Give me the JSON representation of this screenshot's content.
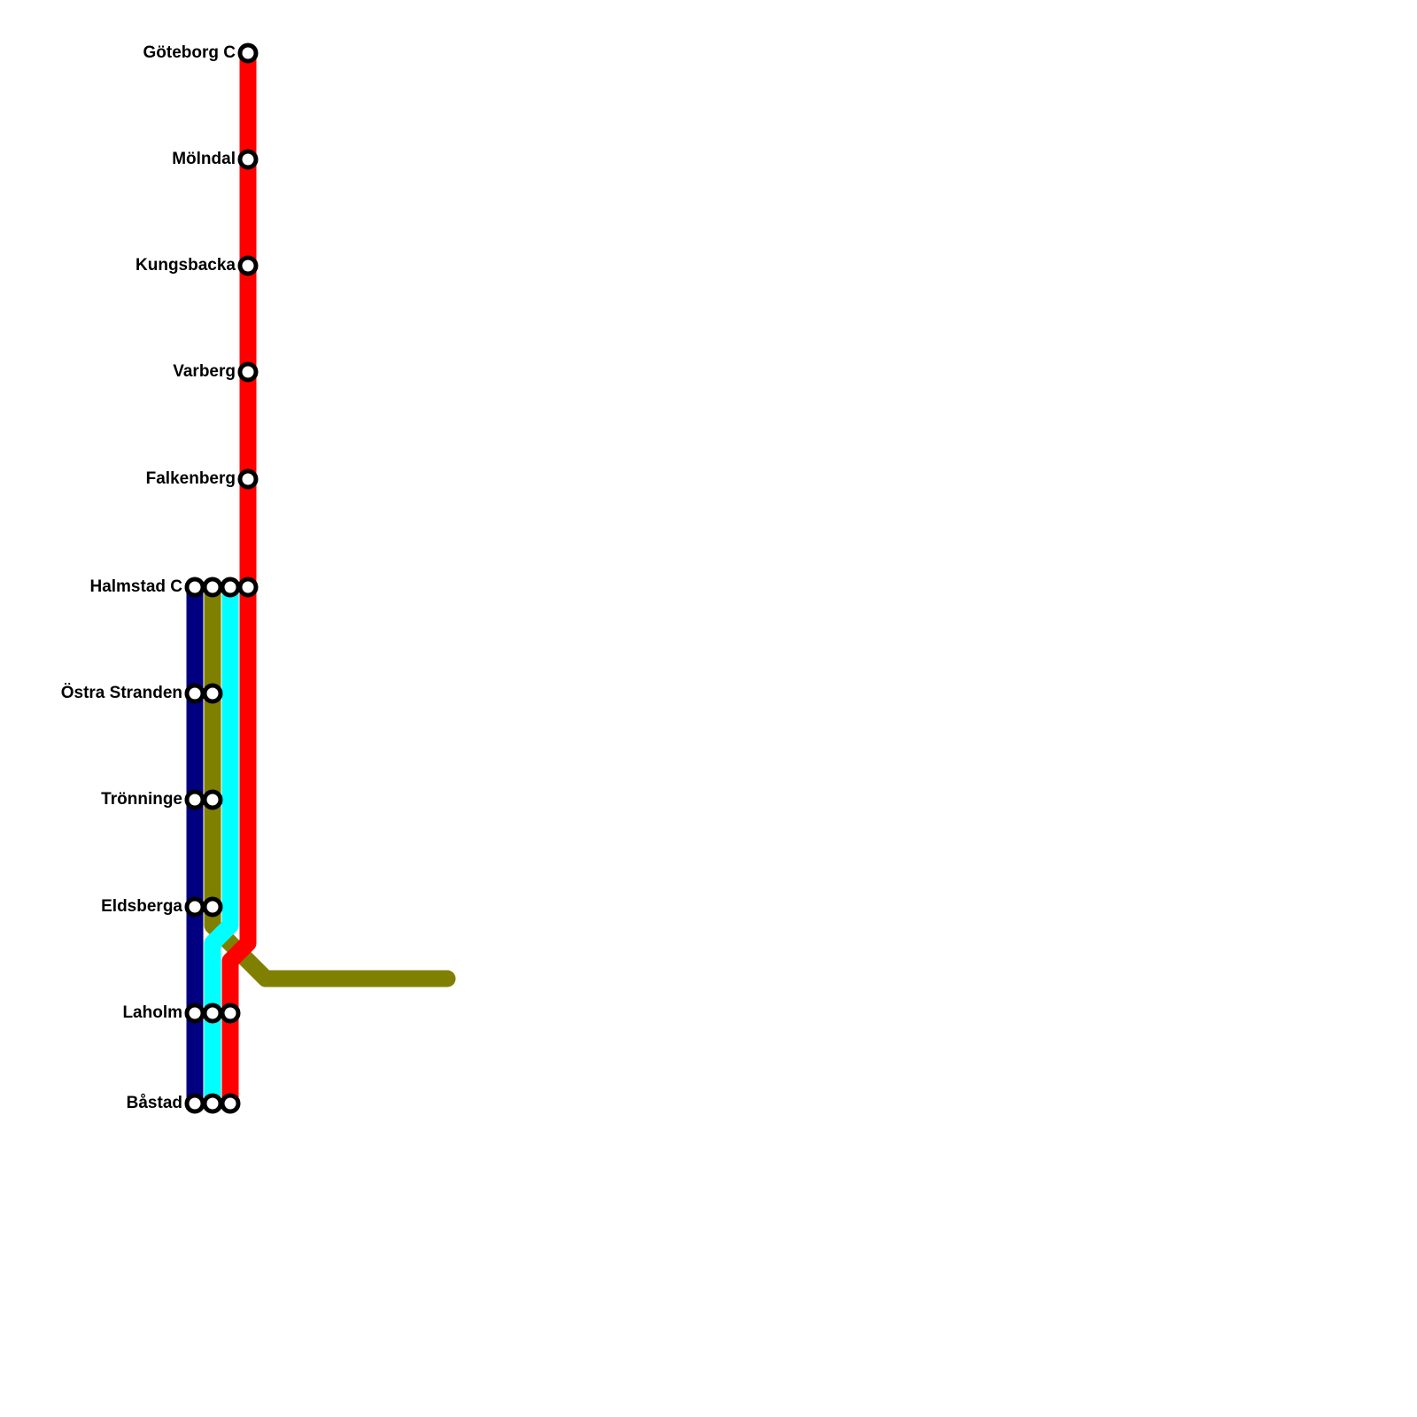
{
  "lines": [
    {
      "id": "navy",
      "color": "#000080"
    },
    {
      "id": "olive",
      "color": "#808000"
    },
    {
      "id": "cyan",
      "color": "#00ffff"
    },
    {
      "id": "red",
      "color": "#ff0000"
    }
  ],
  "stations": [
    {
      "id": "goteborg",
      "name": "Göteborg C"
    },
    {
      "id": "molndal",
      "name": "Mölndal"
    },
    {
      "id": "kungsbacka",
      "name": "Kungsbacka"
    },
    {
      "id": "varberg",
      "name": "Varberg"
    },
    {
      "id": "falkenberg",
      "name": "Falkenberg"
    },
    {
      "id": "halmstad",
      "name": "Halmstad C"
    },
    {
      "id": "ostra-stranden",
      "name": "Östra Stranden"
    },
    {
      "id": "tronninge",
      "name": "Trönninge"
    },
    {
      "id": "eldsberga",
      "name": "Eldsberga"
    },
    {
      "id": "laholm",
      "name": "Laholm"
    },
    {
      "id": "bastad",
      "name": "Båstad"
    }
  ]
}
